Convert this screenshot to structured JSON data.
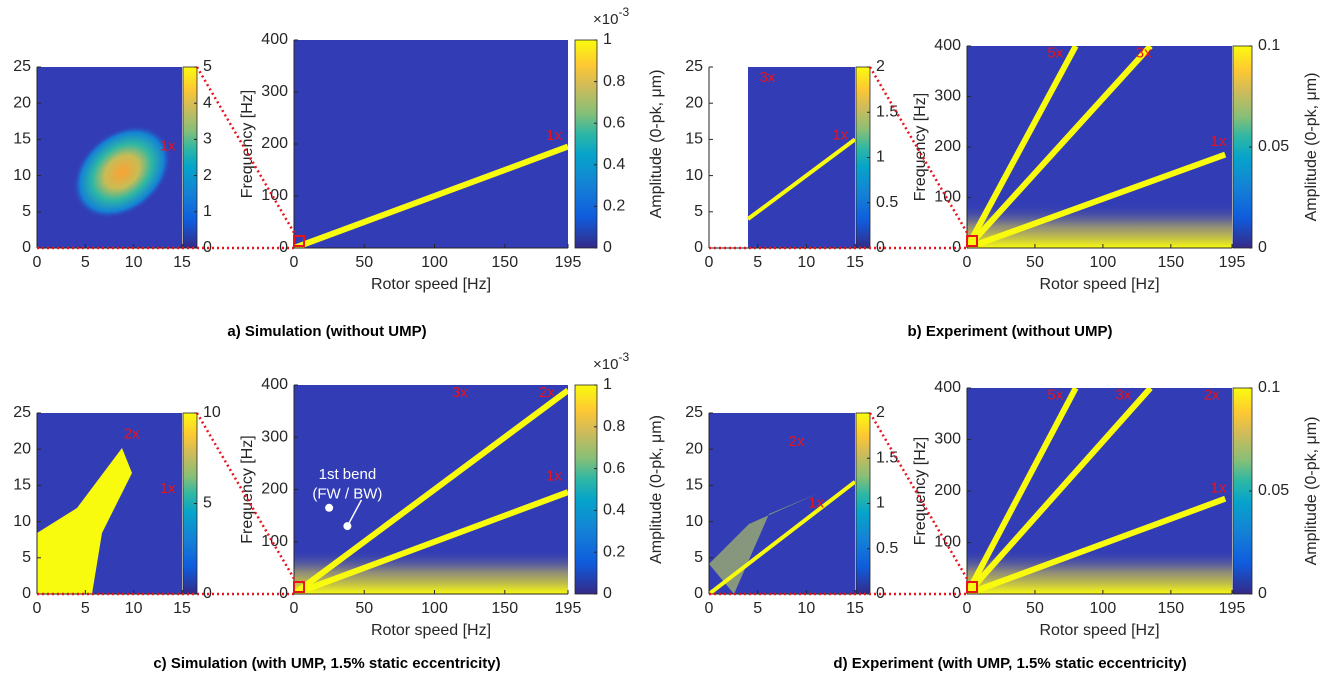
{
  "chart_data": [
    {
      "type": "heatmap",
      "xlim": [
        0,
        15
      ],
      "xticks": [
        0,
        5,
        10,
        15
      ],
      "ylim": [
        0,
        25
      ],
      "yticks": [
        0,
        5,
        10,
        15,
        20,
        25
      ],
      "colorbar": {
        "lim": [
          0,
          5
        ],
        "ticks": [
          0,
          1,
          2,
          3,
          4,
          5
        ]
      },
      "series": [],
      "annotations": [
        {
          "text": "1x",
          "x": 13.5,
          "y": 14,
          "color": "#e8141c"
        }
      ]
    },
    {
      "type": "heatmap",
      "xlabel": "Rotor speed [Hz]",
      "ylabel": "Frequency [Hz]",
      "caption": "a) Simulation (without UMP)",
      "xlim": [
        0,
        195
      ],
      "xticks": [
        0,
        50,
        100,
        150,
        195
      ],
      "ylim": [
        0,
        400
      ],
      "yticks": [
        0,
        100,
        200,
        300,
        400
      ],
      "colorbar": {
        "label": "Amplitude (0-pk, μm)",
        "lim": [
          0,
          1
        ],
        "ticks": [
          0,
          0.2,
          0.4,
          0.6,
          0.8,
          1
        ],
        "exponent_base": "×10",
        "exponent": -3
      },
      "series": [
        {
          "color": "#f9fb0e",
          "x": [
            0,
            195
          ],
          "values": [
            0,
            195
          ]
        }
      ],
      "annotations": [
        {
          "text": "1x",
          "x": 185,
          "y": 215,
          "color": "#e8141c"
        }
      ]
    },
    {
      "type": "heatmap",
      "xlim": [
        0,
        15
      ],
      "xticks": [
        0,
        5,
        10,
        15
      ],
      "ylim": [
        0,
        25
      ],
      "yticks": [
        0,
        5,
        10,
        15,
        20,
        25
      ],
      "colorbar": {
        "lim": [
          0,
          2
        ],
        "ticks": [
          0,
          0.5,
          1,
          1.5,
          2
        ]
      },
      "series": [
        {
          "color": "#f9fb0e",
          "x": [
            4,
            15
          ],
          "values": [
            4,
            15
          ]
        }
      ],
      "annotations": [
        {
          "text": "3x",
          "x": 6,
          "y": 23.5,
          "color": "#e8141c"
        },
        {
          "text": "1x",
          "x": 13.5,
          "y": 15.5,
          "color": "#e8141c"
        }
      ]
    },
    {
      "type": "heatmap",
      "xlabel": "Rotor speed [Hz]",
      "ylabel": "Frequency [Hz]",
      "caption": "b) Experiment (without UMP)",
      "xlim": [
        0,
        195
      ],
      "xticks": [
        0,
        50,
        100,
        150,
        195
      ],
      "ylim": [
        0,
        400
      ],
      "yticks": [
        0,
        100,
        200,
        300,
        400
      ],
      "colorbar": {
        "label": "Amplitude (0-pk, μm)",
        "lim": [
          0,
          0.1
        ],
        "ticks": [
          0,
          0.05,
          0.1
        ]
      },
      "series": [
        {
          "color": "#f9fb0e",
          "x": [
            0,
            190
          ],
          "values": [
            0,
            185
          ]
        },
        {
          "color": "#f9fb0e",
          "x": [
            0,
            135
          ],
          "values": [
            0,
            400
          ]
        },
        {
          "color": "#f9fb0e",
          "x": [
            0,
            80
          ],
          "values": [
            0,
            400
          ]
        }
      ],
      "annotations": [
        {
          "text": "5x",
          "x": 65,
          "y": 385,
          "color": "#e8141c"
        },
        {
          "text": "3x",
          "x": 130,
          "y": 385,
          "color": "#e8141c"
        },
        {
          "text": "1x",
          "x": 185,
          "y": 210,
          "color": "#e8141c"
        }
      ]
    },
    {
      "type": "heatmap",
      "xlim": [
        0,
        15
      ],
      "xticks": [
        0,
        5,
        10,
        15
      ],
      "ylim": [
        0,
        25
      ],
      "yticks": [
        0,
        5,
        10,
        15,
        20,
        25
      ],
      "colorbar": {
        "lim": [
          0,
          10
        ],
        "ticks": [
          0,
          5,
          10
        ]
      },
      "series": [],
      "annotations": [
        {
          "text": "2x",
          "x": 9.8,
          "y": 22,
          "color": "#e8141c"
        },
        {
          "text": "1x",
          "x": 13.5,
          "y": 14.5,
          "color": "#e8141c"
        }
      ]
    },
    {
      "type": "heatmap",
      "xlabel": "Rotor speed [Hz]",
      "ylabel": "Frequency [Hz]",
      "caption": "c) Simulation (with UMP, 1.5% static eccentricity)",
      "xlim": [
        0,
        195
      ],
      "xticks": [
        0,
        50,
        100,
        150,
        195
      ],
      "ylim": [
        0,
        400
      ],
      "yticks": [
        0,
        100,
        200,
        300,
        400
      ],
      "colorbar": {
        "label": "Amplitude (0-pk, μm)",
        "lim": [
          0,
          1
        ],
        "ticks": [
          0,
          0.2,
          0.4,
          0.6,
          0.8,
          1
        ],
        "exponent_base": "×10",
        "exponent": -3
      },
      "series": [
        {
          "color": "#f9fb0e",
          "x": [
            0,
            195
          ],
          "values": [
            0,
            195
          ]
        },
        {
          "color": "#f9fb0e",
          "x": [
            0,
            195
          ],
          "values": [
            0,
            390
          ]
        }
      ],
      "annotations": [
        {
          "text": "3x",
          "x": 118,
          "y": 385,
          "color": "#e8141c"
        },
        {
          "text": "2x",
          "x": 180,
          "y": 385,
          "color": "#e8141c"
        },
        {
          "text": "1x",
          "x": 185,
          "y": 225,
          "color": "#e8141c"
        },
        {
          "text": "1st bend",
          "x": 38,
          "y": 228,
          "color": "#ffffff"
        },
        {
          "text": "(FW / BW)",
          "x": 38,
          "y": 190,
          "color": "#ffffff"
        }
      ]
    },
    {
      "type": "heatmap",
      "xlim": [
        0,
        15
      ],
      "xticks": [
        0,
        5,
        10,
        15
      ],
      "ylim": [
        0,
        25
      ],
      "yticks": [
        0,
        5,
        10,
        15,
        20,
        25
      ],
      "colorbar": {
        "lim": [
          0,
          2
        ],
        "ticks": [
          0,
          0.5,
          1,
          1.5,
          2
        ]
      },
      "series": [
        {
          "color": "#f9fb0e",
          "x": [
            0,
            15
          ],
          "values": [
            0,
            15.5
          ]
        }
      ],
      "annotations": [
        {
          "text": "2x",
          "x": 9,
          "y": 21,
          "color": "#e8141c"
        },
        {
          "text": "1x",
          "x": 11,
          "y": 12.5,
          "color": "#e8141c"
        }
      ]
    },
    {
      "type": "heatmap",
      "xlabel": "Rotor speed [Hz]",
      "ylabel": "Frequency [Hz]",
      "caption": "d) Experiment (with UMP, 1.5% static eccentricity)",
      "xlim": [
        0,
        195
      ],
      "xticks": [
        0,
        50,
        100,
        150,
        195
      ],
      "ylim": [
        0,
        400
      ],
      "yticks": [
        0,
        100,
        200,
        300,
        400
      ],
      "colorbar": {
        "label": "Amplitude (0-pk, μm)",
        "lim": [
          0,
          0.1
        ],
        "ticks": [
          0,
          0.05,
          0.1
        ]
      },
      "series": [
        {
          "color": "#f9fb0e",
          "x": [
            0,
            190
          ],
          "values": [
            0,
            185
          ]
        },
        {
          "color": "#f9fb0e",
          "x": [
            0,
            135
          ],
          "values": [
            0,
            400
          ]
        },
        {
          "color": "#f9fb0e",
          "x": [
            0,
            80
          ],
          "values": [
            0,
            400
          ]
        }
      ],
      "annotations": [
        {
          "text": "5x",
          "x": 65,
          "y": 385,
          "color": "#e8141c"
        },
        {
          "text": "3x",
          "x": 115,
          "y": 385,
          "color": "#e8141c"
        },
        {
          "text": "2x",
          "x": 180,
          "y": 385,
          "color": "#e8141c"
        },
        {
          "text": "1x",
          "x": 185,
          "y": 205,
          "color": "#e8141c"
        }
      ]
    }
  ]
}
